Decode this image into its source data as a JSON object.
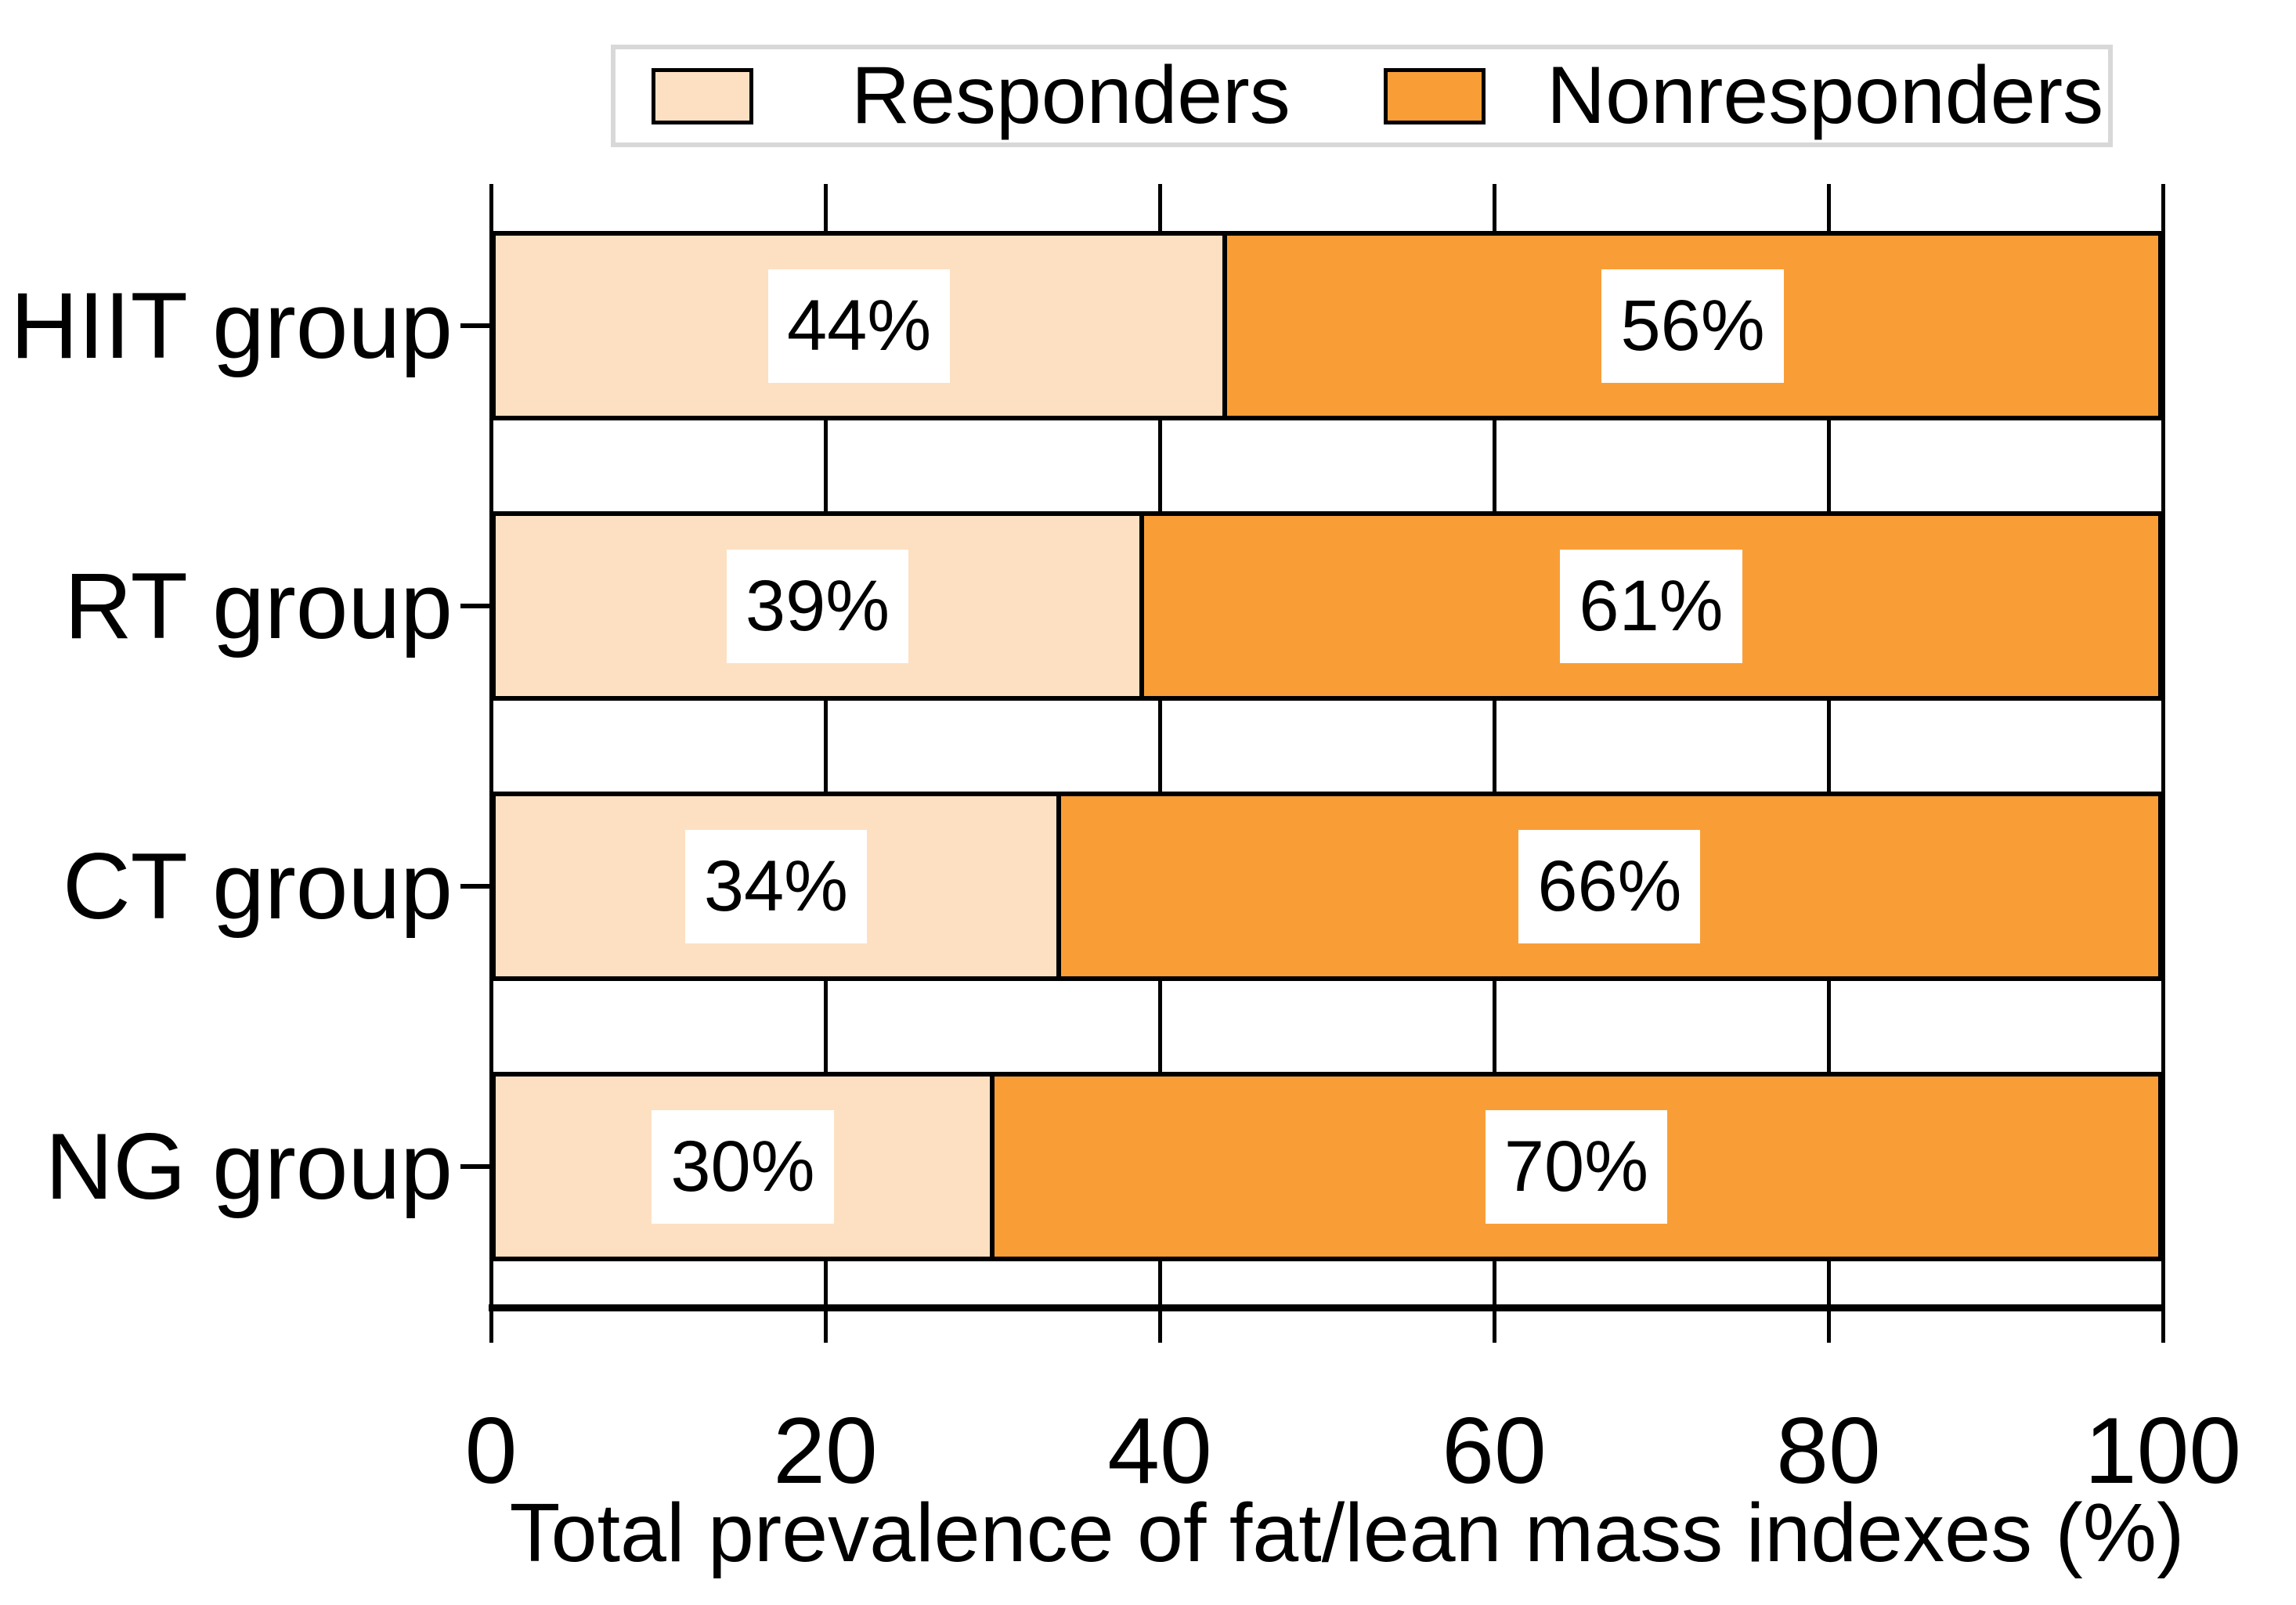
{
  "legend": {
    "items": [
      {
        "label": "Responders",
        "color": "#FDE0C2"
      },
      {
        "label": "Nonresponders",
        "color": "#F99E37"
      }
    ]
  },
  "chart_data": {
    "type": "bar",
    "orientation": "horizontal",
    "stacked": true,
    "title": "",
    "xlabel": "Total prevalence of fat/lean mass indexes (%)",
    "ylabel": "",
    "xlim": [
      0,
      100
    ],
    "xticks": {
      "values": [
        0,
        20,
        40,
        60,
        80,
        100
      ],
      "labels": [
        "0",
        "20",
        "40",
        "60",
        "80",
        "100"
      ]
    },
    "categories": [
      "HIIT group",
      "RT group",
      "CT group",
      "NG group"
    ],
    "series": [
      {
        "name": "Responders",
        "color": "#FDE0C2",
        "values": [
          44,
          39,
          34,
          30
        ],
        "value_labels": [
          "44%",
          "39%",
          "34%",
          "30%"
        ]
      },
      {
        "name": "Nonresponders",
        "color": "#F99E37",
        "values": [
          56,
          61,
          66,
          70
        ],
        "value_labels": [
          "56%",
          "61%",
          "66%",
          "70%"
        ]
      }
    ],
    "grid": "vertical-gridlines-at-ticks",
    "legend_position": "top",
    "bar_value_labels_style": "white-box-black-text"
  }
}
